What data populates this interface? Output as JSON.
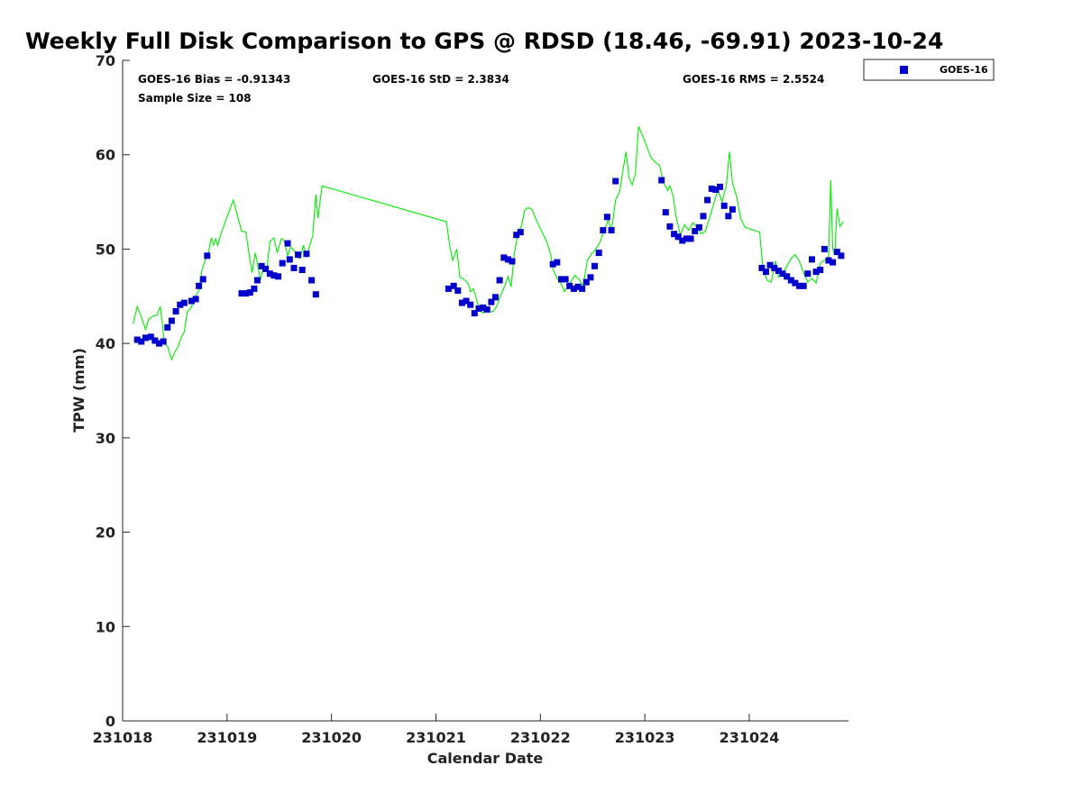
{
  "chart_data": {
    "type": "scatter",
    "title": "Weekly Full Disk Comparison to GPS @ RDSD (18.46, -69.91) 2023-10-24",
    "xlabel": "Calendar Date",
    "ylabel": "TPW (mm)",
    "xlim": [
      0,
      6.95
    ],
    "ylim": [
      0,
      70
    ],
    "x_tick_values": [
      0,
      1,
      2,
      3,
      4,
      5,
      6
    ],
    "x_tick_labels": [
      "231018",
      "231019",
      "231020",
      "231021",
      "231022",
      "231023",
      "231024"
    ],
    "y_ticks": [
      0,
      10,
      20,
      30,
      40,
      50,
      60,
      70
    ],
    "legend": {
      "position": "top-right outside",
      "entries": [
        "GOES-16"
      ]
    },
    "stats": {
      "bias": "GOES-16 Bias = -0.91343",
      "std": "GOES-16 StD = 2.3834",
      "rms": "GOES-16 RMS = 2.5524",
      "sample": "Sample Size = 108"
    },
    "series": [
      {
        "name": "GOES-16",
        "kind": "scatter",
        "color": "#0000cc",
        "marker": "square",
        "points": [
          [
            0.14,
            40.4
          ],
          [
            0.18,
            40.2
          ],
          [
            0.22,
            40.6
          ],
          [
            0.27,
            40.7
          ],
          [
            0.31,
            40.3
          ],
          [
            0.35,
            40.0
          ],
          [
            0.39,
            40.2
          ],
          [
            0.43,
            41.7
          ],
          [
            0.47,
            42.4
          ],
          [
            0.51,
            43.4
          ],
          [
            0.55,
            44.1
          ],
          [
            0.59,
            44.3
          ],
          [
            0.66,
            44.5
          ],
          [
            0.7,
            44.7
          ],
          [
            0.73,
            46.1
          ],
          [
            0.77,
            46.8
          ],
          [
            0.81,
            49.3
          ],
          [
            1.14,
            45.3
          ],
          [
            1.18,
            45.3
          ],
          [
            1.22,
            45.4
          ],
          [
            1.26,
            45.8
          ],
          [
            1.29,
            46.7
          ],
          [
            1.33,
            48.2
          ],
          [
            1.37,
            47.9
          ],
          [
            1.41,
            47.4
          ],
          [
            1.45,
            47.2
          ],
          [
            1.49,
            47.1
          ],
          [
            1.53,
            48.5
          ],
          [
            1.58,
            50.6
          ],
          [
            1.6,
            48.9
          ],
          [
            1.64,
            48.0
          ],
          [
            1.68,
            49.4
          ],
          [
            1.72,
            47.8
          ],
          [
            1.76,
            49.5
          ],
          [
            1.81,
            46.7
          ],
          [
            1.85,
            45.2
          ],
          [
            3.12,
            45.8
          ],
          [
            3.17,
            46.1
          ],
          [
            3.21,
            45.6
          ],
          [
            3.25,
            44.3
          ],
          [
            3.29,
            44.5
          ],
          [
            3.33,
            44.1
          ],
          [
            3.37,
            43.2
          ],
          [
            3.41,
            43.7
          ],
          [
            3.45,
            43.8
          ],
          [
            3.49,
            43.6
          ],
          [
            3.53,
            44.4
          ],
          [
            3.57,
            44.9
          ],
          [
            3.61,
            46.7
          ],
          [
            3.65,
            49.1
          ],
          [
            3.69,
            48.9
          ],
          [
            3.73,
            48.7
          ],
          [
            3.77,
            51.5
          ],
          [
            3.81,
            51.8
          ],
          [
            4.12,
            48.4
          ],
          [
            4.16,
            48.6
          ],
          [
            4.2,
            46.8
          ],
          [
            4.24,
            46.8
          ],
          [
            4.28,
            46.1
          ],
          [
            4.32,
            45.8
          ],
          [
            4.36,
            46.0
          ],
          [
            4.4,
            45.8
          ],
          [
            4.44,
            46.5
          ],
          [
            4.48,
            47.0
          ],
          [
            4.52,
            48.2
          ],
          [
            4.56,
            49.6
          ],
          [
            4.6,
            52.0
          ],
          [
            4.64,
            53.4
          ],
          [
            4.68,
            52.0
          ],
          [
            4.72,
            57.2
          ],
          [
            5.16,
            57.3
          ],
          [
            5.2,
            53.9
          ],
          [
            5.24,
            52.4
          ],
          [
            5.28,
            51.6
          ],
          [
            5.32,
            51.3
          ],
          [
            5.36,
            50.9
          ],
          [
            5.4,
            51.1
          ],
          [
            5.44,
            51.1
          ],
          [
            5.48,
            51.9
          ],
          [
            5.52,
            52.3
          ],
          [
            5.56,
            53.5
          ],
          [
            5.6,
            55.2
          ],
          [
            5.64,
            56.4
          ],
          [
            5.68,
            56.3
          ],
          [
            5.72,
            56.6
          ],
          [
            5.76,
            54.6
          ],
          [
            5.8,
            53.5
          ],
          [
            5.84,
            54.2
          ],
          [
            6.12,
            48.0
          ],
          [
            6.16,
            47.6
          ],
          [
            6.2,
            48.3
          ],
          [
            6.24,
            48.0
          ],
          [
            6.28,
            47.7
          ],
          [
            6.32,
            47.4
          ],
          [
            6.36,
            47.1
          ],
          [
            6.4,
            46.7
          ],
          [
            6.44,
            46.4
          ],
          [
            6.48,
            46.1
          ],
          [
            6.52,
            46.1
          ],
          [
            6.56,
            47.4
          ],
          [
            6.6,
            48.9
          ],
          [
            6.64,
            47.6
          ],
          [
            6.68,
            47.8
          ],
          [
            6.72,
            50.0
          ],
          [
            6.76,
            48.8
          ],
          [
            6.8,
            48.6
          ],
          [
            6.84,
            49.7
          ],
          [
            6.88,
            49.3
          ]
        ]
      },
      {
        "name": "GPS",
        "kind": "line",
        "color": "#00ee00",
        "points": [
          [
            0.1,
            42.1
          ],
          [
            0.14,
            43.9
          ],
          [
            0.18,
            42.8
          ],
          [
            0.22,
            41.5
          ],
          [
            0.25,
            42.6
          ],
          [
            0.29,
            42.9
          ],
          [
            0.33,
            43.0
          ],
          [
            0.36,
            43.9
          ],
          [
            0.38,
            42.2
          ],
          [
            0.4,
            40.0
          ],
          [
            0.43,
            39.7
          ],
          [
            0.47,
            38.3
          ],
          [
            0.5,
            39.1
          ],
          [
            0.53,
            39.6
          ],
          [
            0.56,
            40.6
          ],
          [
            0.59,
            41.2
          ],
          [
            0.62,
            43.4
          ],
          [
            0.65,
            43.7
          ],
          [
            0.68,
            44.5
          ],
          [
            0.7,
            45.1
          ],
          [
            0.73,
            45.6
          ],
          [
            0.76,
            47.8
          ],
          [
            0.79,
            48.8
          ],
          [
            0.82,
            49.6
          ],
          [
            0.85,
            51.2
          ],
          [
            0.87,
            50.4
          ],
          [
            0.89,
            51.1
          ],
          [
            0.91,
            50.4
          ],
          [
            0.94,
            51.6
          ],
          [
            0.98,
            52.8
          ],
          [
            1.02,
            54.0
          ],
          [
            1.06,
            55.2
          ],
          [
            1.1,
            53.5
          ],
          [
            1.14,
            51.9
          ],
          [
            1.18,
            51.8
          ],
          [
            1.22,
            48.8
          ],
          [
            1.24,
            47.5
          ],
          [
            1.27,
            49.6
          ],
          [
            1.29,
            48.5
          ],
          [
            1.32,
            46.7
          ],
          [
            1.35,
            48.3
          ],
          [
            1.38,
            47.7
          ],
          [
            1.41,
            50.8
          ],
          [
            1.45,
            51.2
          ],
          [
            1.48,
            49.6
          ],
          [
            1.52,
            51.1
          ],
          [
            1.55,
            50.9
          ],
          [
            1.58,
            49.3
          ],
          [
            1.61,
            50.2
          ],
          [
            1.64,
            49.9
          ],
          [
            1.67,
            49.2
          ],
          [
            1.7,
            49.0
          ],
          [
            1.73,
            50.4
          ],
          [
            1.76,
            49.2
          ],
          [
            1.79,
            50.3
          ],
          [
            1.82,
            51.4
          ],
          [
            1.85,
            55.8
          ],
          [
            1.87,
            53.3
          ],
          [
            1.91,
            56.7
          ],
          [
            3.1,
            52.9
          ],
          [
            3.13,
            50.5
          ],
          [
            3.16,
            48.8
          ],
          [
            3.2,
            50.0
          ],
          [
            3.23,
            47.0
          ],
          [
            3.27,
            46.8
          ],
          [
            3.31,
            46.3
          ],
          [
            3.33,
            45.5
          ],
          [
            3.36,
            45.8
          ],
          [
            3.39,
            44.6
          ],
          [
            3.42,
            43.5
          ],
          [
            3.45,
            43.2
          ],
          [
            3.48,
            43.9
          ],
          [
            3.51,
            43.3
          ],
          [
            3.55,
            43.4
          ],
          [
            3.58,
            43.9
          ],
          [
            3.62,
            45.1
          ],
          [
            3.66,
            46.1
          ],
          [
            3.69,
            47.1
          ],
          [
            3.72,
            46.0
          ],
          [
            3.75,
            49.6
          ],
          [
            3.79,
            51.8
          ],
          [
            3.82,
            52.5
          ],
          [
            3.85,
            54.1
          ],
          [
            3.88,
            54.4
          ],
          [
            3.92,
            54.2
          ],
          [
            3.96,
            53.1
          ],
          [
            4.0,
            52.2
          ],
          [
            4.06,
            50.8
          ],
          [
            4.1,
            49.4
          ],
          [
            4.12,
            47.9
          ],
          [
            4.16,
            46.9
          ],
          [
            4.2,
            46.3
          ],
          [
            4.23,
            45.5
          ],
          [
            4.26,
            46.0
          ],
          [
            4.29,
            46.5
          ],
          [
            4.33,
            47.2
          ],
          [
            4.37,
            46.8
          ],
          [
            4.41,
            46.1
          ],
          [
            4.45,
            48.8
          ],
          [
            4.49,
            49.5
          ],
          [
            4.53,
            50.0
          ],
          [
            4.57,
            50.7
          ],
          [
            4.61,
            51.9
          ],
          [
            4.65,
            53.1
          ],
          [
            4.68,
            51.9
          ],
          [
            4.72,
            55.2
          ],
          [
            4.76,
            56.1
          ],
          [
            4.79,
            58.3
          ],
          [
            4.82,
            60.3
          ],
          [
            4.85,
            57.5
          ],
          [
            4.88,
            56.8
          ],
          [
            4.91,
            58.0
          ],
          [
            4.94,
            63.0
          ],
          [
            4.98,
            62.0
          ],
          [
            5.02,
            60.8
          ],
          [
            5.06,
            59.7
          ],
          [
            5.1,
            59.2
          ],
          [
            5.14,
            58.9
          ],
          [
            5.18,
            57.0
          ],
          [
            5.22,
            56.2
          ],
          [
            5.24,
            56.7
          ],
          [
            5.27,
            55.7
          ],
          [
            5.3,
            53.4
          ],
          [
            5.34,
            51.5
          ],
          [
            5.38,
            52.6
          ],
          [
            5.42,
            52.0
          ],
          [
            5.46,
            52.8
          ],
          [
            5.5,
            52.3
          ],
          [
            5.54,
            51.6
          ],
          [
            5.58,
            51.9
          ],
          [
            5.62,
            53.3
          ],
          [
            5.66,
            54.8
          ],
          [
            5.7,
            56.3
          ],
          [
            5.74,
            55.0
          ],
          [
            5.78,
            56.7
          ],
          [
            5.81,
            60.3
          ],
          [
            5.84,
            57.0
          ],
          [
            5.88,
            55.5
          ],
          [
            5.92,
            53.2
          ],
          [
            5.96,
            52.3
          ],
          [
            6.1,
            51.8
          ],
          [
            6.13,
            48.0
          ],
          [
            6.17,
            46.7
          ],
          [
            6.21,
            46.5
          ],
          [
            6.25,
            48.7
          ],
          [
            6.28,
            47.0
          ],
          [
            6.32,
            47.4
          ],
          [
            6.36,
            48.2
          ],
          [
            6.4,
            49.0
          ],
          [
            6.44,
            49.4
          ],
          [
            6.48,
            48.7
          ],
          [
            6.52,
            47.5
          ],
          [
            6.56,
            46.5
          ],
          [
            6.6,
            46.9
          ],
          [
            6.64,
            46.4
          ],
          [
            6.68,
            48.5
          ],
          [
            6.72,
            48.8
          ],
          [
            6.76,
            49.2
          ],
          [
            6.78,
            57.3
          ],
          [
            6.8,
            50.0
          ],
          [
            6.82,
            49.4
          ],
          [
            6.84,
            54.3
          ],
          [
            6.87,
            52.4
          ],
          [
            6.9,
            52.9
          ]
        ]
      }
    ]
  }
}
